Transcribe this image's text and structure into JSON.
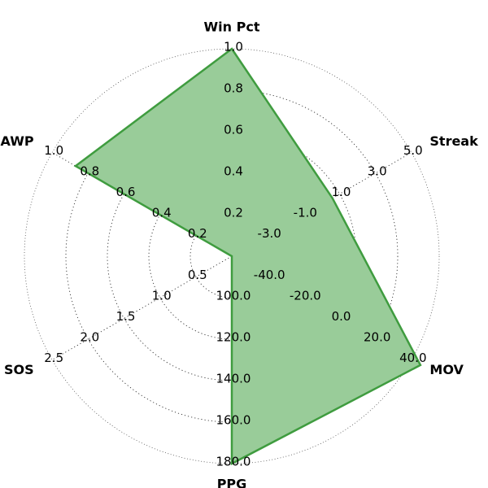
{
  "chart_data": {
    "type": "radar",
    "axes": [
      {
        "name": "Win Pct",
        "ticks": [
          "0.2",
          "0.4",
          "0.6",
          "0.8",
          "1.0"
        ],
        "range": [
          0.0,
          1.0
        ]
      },
      {
        "name": "Streak",
        "ticks": [
          "-3.0",
          "-1.0",
          "1.0",
          "3.0",
          "5.0"
        ],
        "range": [
          -5.0,
          5.0
        ]
      },
      {
        "name": "MOV",
        "ticks": [
          "-40.0",
          "-20.0",
          "0.0",
          "20.0",
          "40.0"
        ],
        "range": [
          -60.0,
          40.0
        ]
      },
      {
        "name": "PPG",
        "ticks": [
          "100.0",
          "120.0",
          "140.0",
          "160.0",
          "180.0"
        ],
        "range": [
          80.0,
          180.0
        ]
      },
      {
        "name": "SOS",
        "ticks": [
          "0.5",
          "1.0",
          "1.5",
          "2.0",
          "2.5"
        ],
        "range": [
          0.0,
          2.5
        ]
      },
      {
        "name": "AWP",
        "ticks": [
          "0.2",
          "0.4",
          "0.6",
          "0.8",
          "1.0"
        ],
        "range": [
          0.0,
          1.0
        ]
      }
    ],
    "series": [
      {
        "values": [
          1.0,
          0.6,
          45.0,
          180.0,
          0.0,
          0.87
        ]
      }
    ],
    "grid": true,
    "colors": {
      "fill": "#99cc99",
      "line": "#3f9c3f"
    }
  }
}
